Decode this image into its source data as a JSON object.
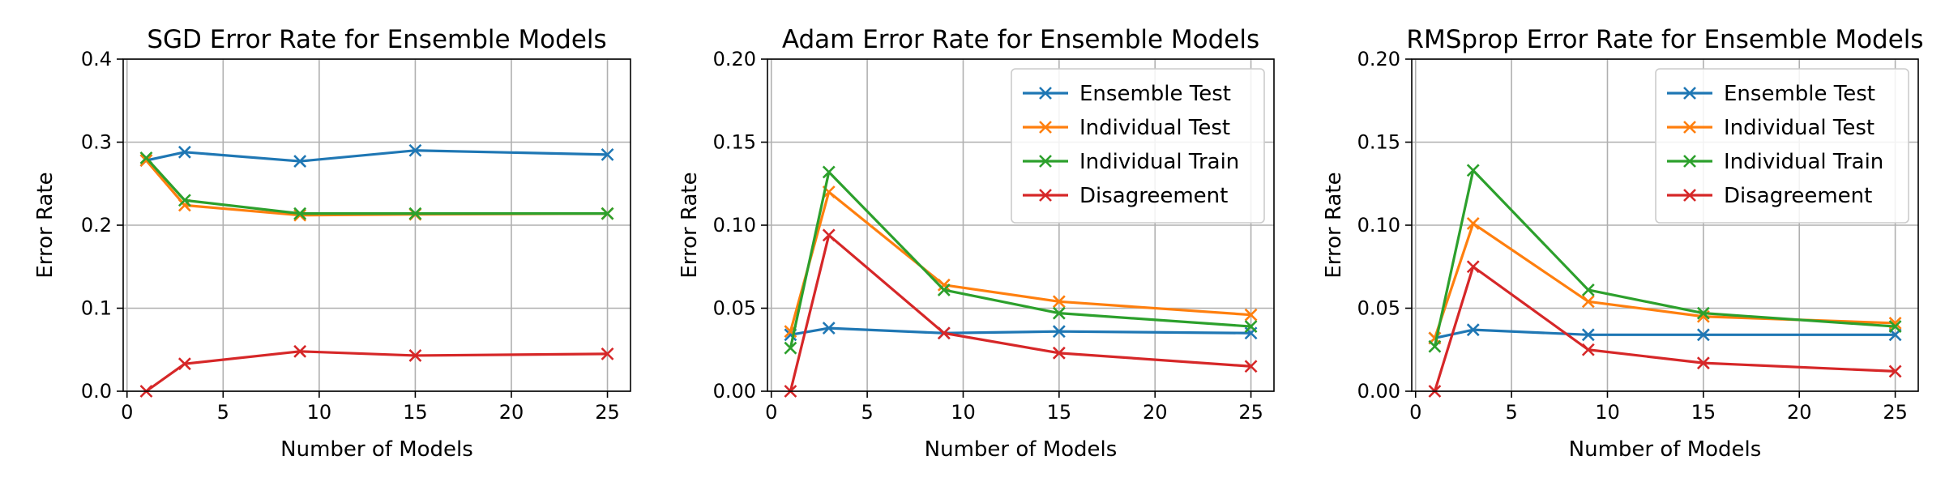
{
  "chart_data": [
    {
      "type": "line",
      "title": "SGD Error Rate for Ensemble Models",
      "xlabel": "Number of Models",
      "ylabel": "Error Rate",
      "xlim": [
        -0.2,
        26.2
      ],
      "ylim": [
        0,
        0.4
      ],
      "xticks": [
        0,
        5,
        10,
        15,
        20,
        25
      ],
      "yticks": [
        0.0,
        0.1,
        0.2,
        0.3,
        0.4
      ],
      "ytick_labels": [
        "0.0",
        "0.1",
        "0.2",
        "0.3",
        "0.4"
      ],
      "grid": true,
      "legend": null,
      "x": [
        1,
        3,
        9,
        15,
        25
      ],
      "series": [
        {
          "name": "Ensemble Test",
          "color": "#1f77b4",
          "values": [
            0.278,
            0.288,
            0.277,
            0.29,
            0.285
          ]
        },
        {
          "name": "Individual Test",
          "color": "#ff7f0e",
          "values": [
            0.278,
            0.224,
            0.212,
            0.213,
            0.214
          ]
        },
        {
          "name": "Individual Train",
          "color": "#2ca02c",
          "values": [
            0.281,
            0.23,
            0.214,
            0.214,
            0.214
          ]
        },
        {
          "name": "Disagreement",
          "color": "#d62728",
          "values": [
            0.0,
            0.033,
            0.048,
            0.043,
            0.045
          ]
        }
      ]
    },
    {
      "type": "line",
      "title": "Adam Error Rate for Ensemble Models",
      "xlabel": "Number of Models",
      "ylabel": "Error Rate",
      "xlim": [
        -0.2,
        26.2
      ],
      "ylim": [
        0,
        0.2
      ],
      "xticks": [
        0,
        5,
        10,
        15,
        20,
        25
      ],
      "yticks": [
        0.0,
        0.05,
        0.1,
        0.15,
        0.2
      ],
      "ytick_labels": [
        "0.00",
        "0.05",
        "0.10",
        "0.15",
        "0.20"
      ],
      "grid": true,
      "legend": "upper right",
      "x": [
        1,
        3,
        9,
        15,
        25
      ],
      "series": [
        {
          "name": "Ensemble Test",
          "color": "#1f77b4",
          "values": [
            0.034,
            0.038,
            0.035,
            0.036,
            0.035
          ]
        },
        {
          "name": "Individual Test",
          "color": "#ff7f0e",
          "values": [
            0.036,
            0.12,
            0.064,
            0.054,
            0.046
          ]
        },
        {
          "name": "Individual Train",
          "color": "#2ca02c",
          "values": [
            0.026,
            0.132,
            0.061,
            0.047,
            0.039
          ]
        },
        {
          "name": "Disagreement",
          "color": "#d62728",
          "values": [
            0.0,
            0.094,
            0.035,
            0.023,
            0.015
          ]
        }
      ]
    },
    {
      "type": "line",
      "title": "RMSprop Error Rate for Ensemble Models",
      "xlabel": "Number of Models",
      "ylabel": "Error Rate",
      "xlim": [
        -0.2,
        26.2
      ],
      "ylim": [
        0,
        0.2
      ],
      "xticks": [
        0,
        5,
        10,
        15,
        20,
        25
      ],
      "yticks": [
        0.0,
        0.05,
        0.1,
        0.15,
        0.2
      ],
      "ytick_labels": [
        "0.00",
        "0.05",
        "0.10",
        "0.15",
        "0.20"
      ],
      "grid": true,
      "legend": "upper right",
      "x": [
        1,
        3,
        9,
        15,
        25
      ],
      "series": [
        {
          "name": "Ensemble Test",
          "color": "#1f77b4",
          "values": [
            0.032,
            0.037,
            0.034,
            0.034,
            0.034
          ]
        },
        {
          "name": "Individual Test",
          "color": "#ff7f0e",
          "values": [
            0.032,
            0.101,
            0.054,
            0.045,
            0.041
          ]
        },
        {
          "name": "Individual Train",
          "color": "#2ca02c",
          "values": [
            0.027,
            0.133,
            0.061,
            0.047,
            0.039
          ]
        },
        {
          "name": "Disagreement",
          "color": "#d62728",
          "values": [
            0.0,
            0.075,
            0.025,
            0.017,
            0.012
          ]
        }
      ]
    }
  ]
}
